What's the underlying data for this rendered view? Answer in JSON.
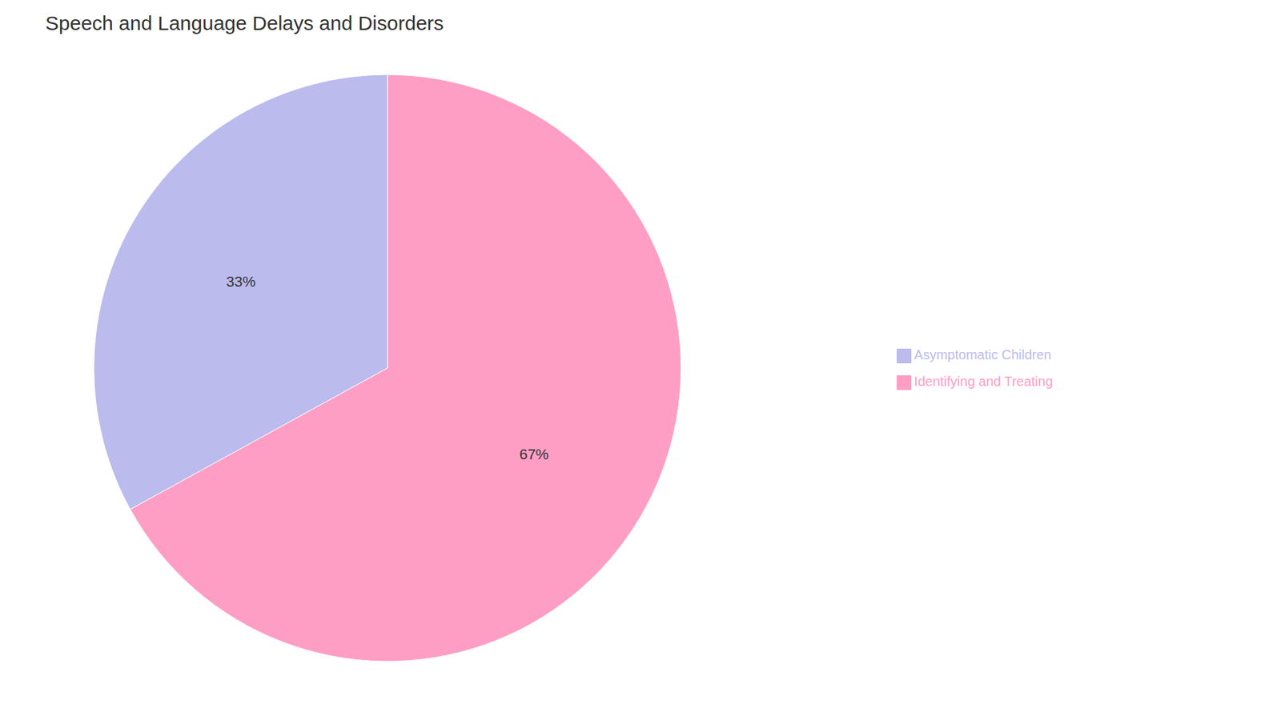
{
  "chart_data": {
    "type": "pie",
    "title": "Speech and Language Delays and Disorders",
    "categories": [
      "Identifying and Treating",
      "Asymptomatic Children"
    ],
    "values": [
      67,
      33
    ],
    "value_labels": [
      "67%",
      "33%"
    ],
    "colors": [
      "#FF9EC4",
      "#BBBBEE"
    ],
    "data_labels": true,
    "legend": "right"
  }
}
